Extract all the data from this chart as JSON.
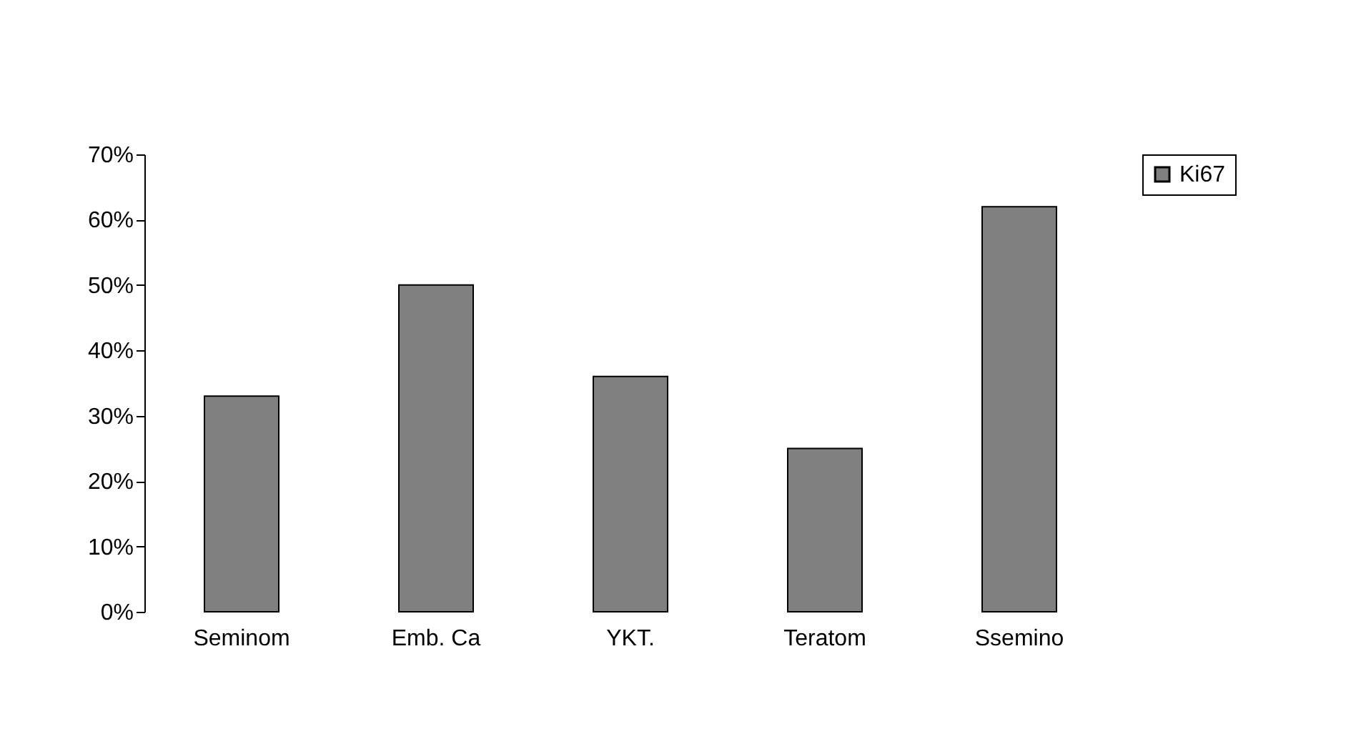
{
  "chart_data": {
    "type": "bar",
    "categories": [
      "Seminom",
      "Emb. Ca",
      "YKT.",
      "Teratom",
      "Ssemino"
    ],
    "series": [
      {
        "name": "Ki67",
        "color": "#808080",
        "values": [
          33,
          50,
          36,
          25,
          62
        ]
      }
    ],
    "ylim": [
      0,
      70
    ],
    "yticks": [
      {
        "value": 0,
        "label": "0%"
      },
      {
        "value": 10,
        "label": "10%"
      },
      {
        "value": 20,
        "label": "20%"
      },
      {
        "value": 30,
        "label": "30%"
      },
      {
        "value": 40,
        "label": "40%"
      },
      {
        "value": 50,
        "label": "50%"
      },
      {
        "value": 60,
        "label": "60%"
      },
      {
        "value": 70,
        "label": "70%"
      }
    ],
    "legend": "right",
    "grid": false
  }
}
